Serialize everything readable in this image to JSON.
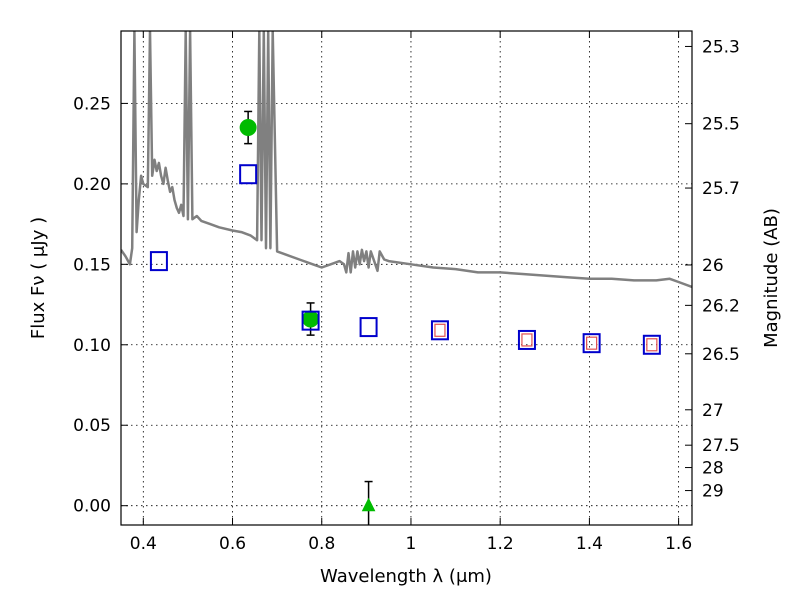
{
  "chart_data": {
    "type": "scatter",
    "title": "",
    "xlabel": "Wavelength  λ (μm)",
    "ylabel": "Flux  Fν  ( μJy )",
    "ylabel_right": "Magnitude (AB)",
    "xlim": [
      0.35,
      1.63
    ],
    "ylim": [
      -0.012,
      0.295
    ],
    "grid": true,
    "x_ticks": [
      0.4,
      0.6,
      0.8,
      1.0,
      1.2,
      1.4,
      1.6
    ],
    "x_tick_labels": [
      "0.4",
      "0.6",
      "0.8",
      "1",
      "1.2",
      "1.4",
      "1.6"
    ],
    "y_ticks": [
      0.0,
      0.05,
      0.1,
      0.15,
      0.2,
      0.25
    ],
    "y_tick_labels": [
      "0.00",
      "0.05",
      "0.10",
      "0.15",
      "0.20",
      "0.25"
    ],
    "mag_ticks": [
      {
        "label": "25.3",
        "flux": 0.2854
      },
      {
        "label": "25.5",
        "flux": 0.2374
      },
      {
        "label": "25.7",
        "flux": 0.1974
      },
      {
        "label": "26",
        "flux": 0.1496
      },
      {
        "label": "26.2",
        "flux": 0.1245
      },
      {
        "label": "26.5",
        "flux": 0.0944
      },
      {
        "label": "27",
        "flux": 0.0596
      },
      {
        "label": "27.5",
        "flux": 0.0376
      },
      {
        "label": "28",
        "flux": 0.0237
      },
      {
        "label": "29",
        "flux": 0.0094
      }
    ],
    "series": [
      {
        "name": "Observed photometry",
        "marker": "circle",
        "color": "#00bb00",
        "points": [
          {
            "x": 0.635,
            "y": 0.235,
            "err": 0.01
          },
          {
            "x": 0.775,
            "y": 0.116,
            "err": 0.01
          }
        ]
      },
      {
        "name": "Upper limit",
        "marker": "triangle",
        "color": "#00bb00",
        "points": [
          {
            "x": 0.905,
            "y": 0.0,
            "err": 0.015
          }
        ]
      },
      {
        "name": "Model photometry",
        "marker": "square",
        "color": "#0000cc",
        "points": [
          {
            "x": 0.435,
            "y": 0.152
          },
          {
            "x": 0.635,
            "y": 0.206
          },
          {
            "x": 0.775,
            "y": 0.115
          },
          {
            "x": 0.905,
            "y": 0.111
          },
          {
            "x": 1.065,
            "y": 0.109
          },
          {
            "x": 1.26,
            "y": 0.103
          },
          {
            "x": 1.405,
            "y": 0.101
          },
          {
            "x": 1.54,
            "y": 0.1
          }
        ]
      },
      {
        "name": "Model photometry (inner)",
        "marker": "square-small",
        "color": "#e05050",
        "points": [
          {
            "x": 1.065,
            "y": 0.109
          },
          {
            "x": 1.26,
            "y": 0.103
          },
          {
            "x": 1.405,
            "y": 0.101
          },
          {
            "x": 1.54,
            "y": 0.1
          }
        ]
      },
      {
        "name": "Model spectrum",
        "type": "line",
        "color": "#808080",
        "x": [
          0.35,
          0.36,
          0.37,
          0.375,
          0.38,
          0.385,
          0.39,
          0.395,
          0.4,
          0.41,
          0.415,
          0.42,
          0.425,
          0.43,
          0.435,
          0.44,
          0.445,
          0.45,
          0.455,
          0.46,
          0.465,
          0.47,
          0.475,
          0.48,
          0.485,
          0.49,
          0.495,
          0.5,
          0.505,
          0.51,
          0.52,
          0.53,
          0.55,
          0.57,
          0.6,
          0.62,
          0.64,
          0.655,
          0.66,
          0.665,
          0.67,
          0.675,
          0.68,
          0.685,
          0.69,
          0.7,
          0.72,
          0.75,
          0.78,
          0.8,
          0.82,
          0.84,
          0.85,
          0.855,
          0.86,
          0.865,
          0.87,
          0.875,
          0.88,
          0.885,
          0.89,
          0.895,
          0.9,
          0.905,
          0.91,
          0.92,
          0.925,
          0.93,
          0.94,
          0.95,
          1.0,
          1.05,
          1.1,
          1.15,
          1.2,
          1.25,
          1.3,
          1.35,
          1.4,
          1.45,
          1.5,
          1.55,
          1.58,
          1.6,
          1.63
        ],
        "y": [
          0.159,
          0.155,
          0.15,
          0.16,
          0.295,
          0.17,
          0.19,
          0.205,
          0.2,
          0.198,
          0.295,
          0.205,
          0.215,
          0.208,
          0.213,
          0.205,
          0.2,
          0.21,
          0.202,
          0.195,
          0.198,
          0.19,
          0.185,
          0.182,
          0.187,
          0.18,
          0.295,
          0.178,
          0.295,
          0.178,
          0.18,
          0.177,
          0.175,
          0.173,
          0.171,
          0.17,
          0.168,
          0.165,
          0.295,
          0.165,
          0.295,
          0.16,
          0.295,
          0.16,
          0.295,
          0.158,
          0.156,
          0.153,
          0.15,
          0.148,
          0.15,
          0.152,
          0.15,
          0.145,
          0.157,
          0.145,
          0.158,
          0.148,
          0.158,
          0.15,
          0.159,
          0.152,
          0.158,
          0.148,
          0.158,
          0.15,
          0.146,
          0.158,
          0.153,
          0.152,
          0.15,
          0.148,
          0.147,
          0.145,
          0.145,
          0.144,
          0.143,
          0.142,
          0.141,
          0.141,
          0.14,
          0.14,
          0.141,
          0.139,
          0.136
        ]
      }
    ]
  }
}
